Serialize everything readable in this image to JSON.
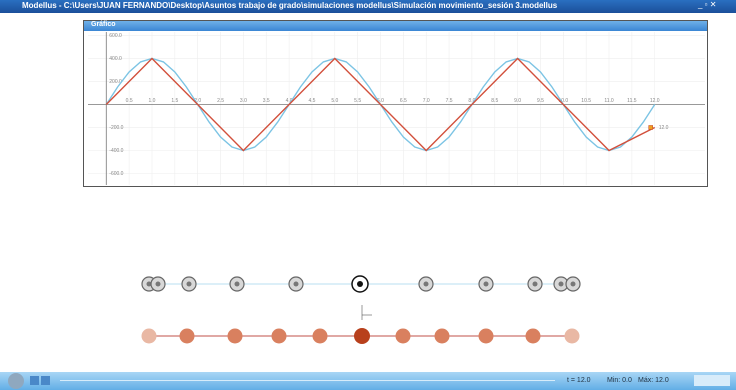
{
  "window_title": "Modellus - C:\\Users\\JUAN FERNANDO\\Desktop\\Asuntos trabajo de grado\\simulaciones modellus\\Simulación movimiento_sesión 3.modellus",
  "panel_title": "Gráfico",
  "chart_data": {
    "type": "line",
    "xlim": [
      -0.4,
      13.1
    ],
    "ylim": [
      -700,
      630
    ],
    "xticks": [
      {
        "value": 0.5,
        "label": "0.5"
      },
      {
        "value": 1,
        "label": "1.0"
      },
      {
        "value": 1.5,
        "label": "1.5"
      },
      {
        "value": 2,
        "label": "2.0"
      },
      {
        "value": 2.5,
        "label": "2.5"
      },
      {
        "value": 3,
        "label": "3.0"
      },
      {
        "value": 3.5,
        "label": "3.5"
      },
      {
        "value": 4,
        "label": "4.0"
      },
      {
        "value": 4.5,
        "label": "4.5"
      },
      {
        "value": 5,
        "label": "5.0"
      },
      {
        "value": 5.5,
        "label": "5.5"
      },
      {
        "value": 6,
        "label": "6.0"
      },
      {
        "value": 6.5,
        "label": "6.5"
      },
      {
        "value": 7,
        "label": "7.0"
      },
      {
        "value": 7.5,
        "label": "7.5"
      },
      {
        "value": 8,
        "label": "8.0"
      },
      {
        "value": 8.5,
        "label": "8.5"
      },
      {
        "value": 9,
        "label": "9.0"
      },
      {
        "value": 9.5,
        "label": "9.5"
      },
      {
        "value": 10,
        "label": "10.0"
      },
      {
        "value": 10.5,
        "label": "10.5"
      },
      {
        "value": 11,
        "label": "11.0"
      },
      {
        "value": 11.5,
        "label": "11.5"
      },
      {
        "value": 12,
        "label": "12.0"
      }
    ],
    "yticks": [
      {
        "value": 600,
        "label": "600.0"
      },
      {
        "value": 400,
        "label": "400.0"
      },
      {
        "value": 200,
        "label": "200.0"
      },
      {
        "value": -200,
        "label": "-200.0"
      },
      {
        "value": -400,
        "label": "-400.0"
      },
      {
        "value": -600,
        "label": "-600.0"
      }
    ],
    "grid": true,
    "series": [
      {
        "color": "#7cc4e4",
        "x": [
          0,
          0.25,
          0.5,
          0.75,
          1,
          1.25,
          1.5,
          1.75,
          2,
          2.25,
          2.5,
          2.75,
          3,
          3.25,
          3.5,
          3.75,
          4,
          4.25,
          4.5,
          4.75,
          5,
          5.25,
          5.5,
          5.75,
          6,
          6.25,
          6.5,
          6.75,
          7,
          7.25,
          7.5,
          7.75,
          8,
          8.25,
          8.5,
          8.75,
          9,
          9.25,
          9.5,
          9.75,
          10,
          10.25,
          10.5,
          10.75,
          11,
          11.25,
          11.5,
          11.75,
          12
        ],
        "values": [
          0,
          153,
          283,
          370,
          400,
          370,
          283,
          153,
          0,
          -153,
          -283,
          -370,
          -400,
          -370,
          -283,
          -153,
          0,
          153,
          283,
          370,
          400,
          370,
          283,
          153,
          0,
          -153,
          -283,
          -370,
          -400,
          -370,
          -283,
          -153,
          0,
          153,
          283,
          370,
          400,
          370,
          283,
          153,
          0,
          -153,
          -283,
          -370,
          -400,
          -370,
          -283,
          -153,
          0
        ]
      },
      {
        "color": "#d2503c",
        "x": [
          0,
          1,
          3,
          5,
          7,
          9,
          11,
          12
        ],
        "values": [
          0,
          400,
          -400,
          400,
          -400,
          400,
          -400,
          -200
        ]
      }
    ],
    "cursor_label": "12.0"
  },
  "status": {
    "time": "t = 12.0",
    "min": "Min: 0.0",
    "max": "Máx: 12.0"
  }
}
